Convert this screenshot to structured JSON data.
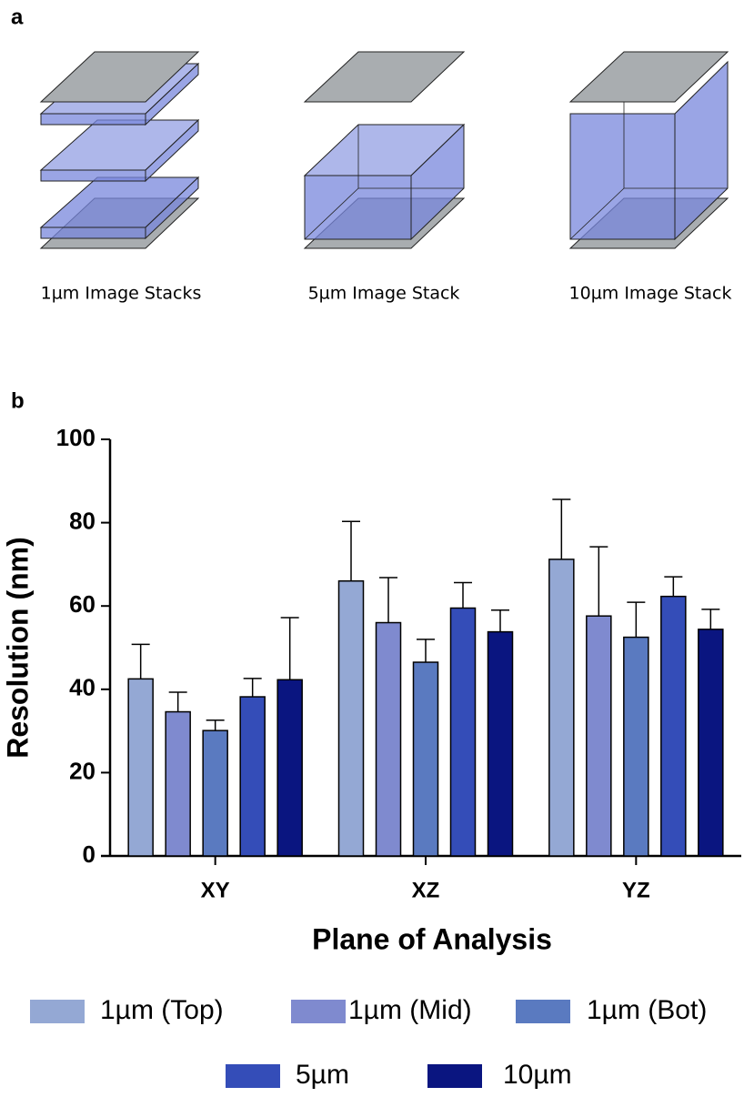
{
  "panel_a": {
    "label": "a",
    "captions": [
      "1µm Image Stacks",
      "5µm Image Stack",
      "10µm Image Stack"
    ]
  },
  "panel_b": {
    "label": "b"
  },
  "chart_data": {
    "type": "bar",
    "x_label": "Plane of Analysis",
    "y_label": "Resolution (nm)",
    "categories": [
      "XY",
      "XZ",
      "YZ"
    ],
    "series": [
      {
        "name": "1µm (Top)",
        "color": "#94a8d4",
        "values": [
          42.5,
          66,
          71.2
        ],
        "errors": [
          8.3,
          14.3,
          14.4
        ]
      },
      {
        "name": "1µm (Mid)",
        "color": "#7f8acf",
        "values": [
          34.6,
          56,
          57.6
        ],
        "errors": [
          4.7,
          10.8,
          16.6
        ]
      },
      {
        "name": "1µm (Bot)",
        "color": "#5a7ac0",
        "values": [
          30.1,
          46.5,
          52.5
        ],
        "errors": [
          2.5,
          5.5,
          8.4
        ]
      },
      {
        "name": "5µm",
        "color": "#344db8",
        "values": [
          38.2,
          59.5,
          62.3
        ],
        "errors": [
          4.4,
          6.1,
          4.7
        ]
      },
      {
        "name": "10µm",
        "color": "#0a1580",
        "values": [
          42.3,
          53.8,
          54.4
        ],
        "errors": [
          14.9,
          5.2,
          4.8
        ]
      }
    ],
    "ylim": [
      0,
      100
    ],
    "yticks": [
      0,
      20,
      40,
      60,
      80,
      100
    ],
    "grid": false,
    "legend": "bottom"
  }
}
